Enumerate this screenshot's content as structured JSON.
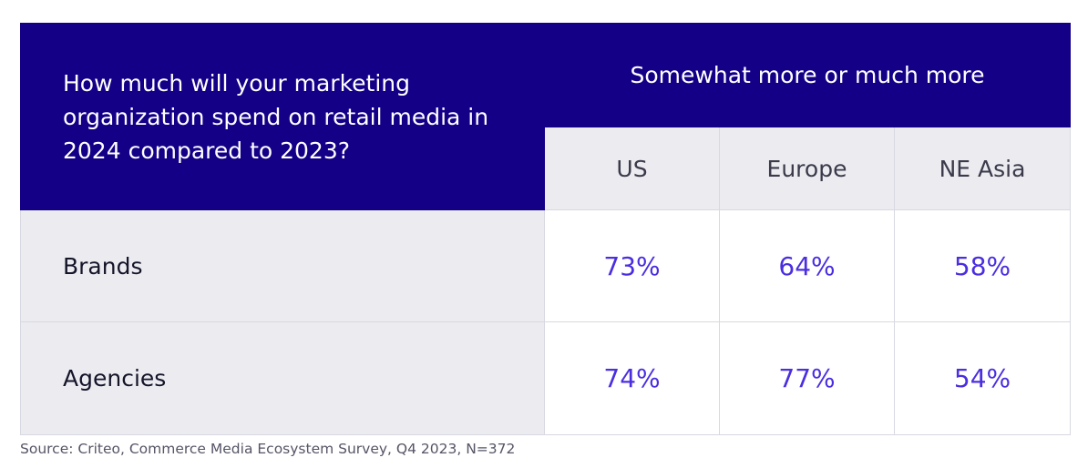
{
  "chart_data": {
    "type": "table",
    "question": "How much will your marketing organization spend on retail media in 2024 compared to 2023?",
    "group_header": "Somewhat more or much more",
    "columns": [
      "US",
      "Europe",
      "NE Asia"
    ],
    "rows": [
      {
        "label": "Brands",
        "values": [
          "73%",
          "64%",
          "58%"
        ]
      },
      {
        "label": "Agencies",
        "values": [
          "74%",
          "77%",
          "54%"
        ]
      }
    ]
  },
  "source": "Source: Criteo, Commerce Media Ecosystem Survey, Q4 2023, N=372",
  "colors": {
    "header_bg": "#130087",
    "header_text": "#ffffff",
    "light_bg": "#ebebf0",
    "value_text": "#4a2ee0"
  }
}
